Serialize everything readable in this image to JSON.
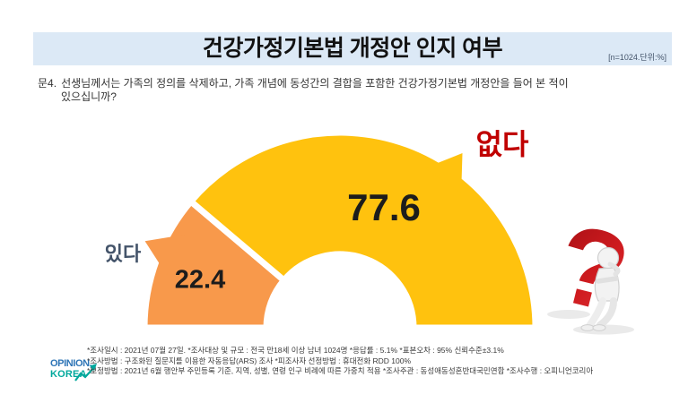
{
  "header": {
    "title": "건강가정기본법 개정안 인지 여부",
    "note": "[n=1024.단위:%]"
  },
  "question": {
    "prefix": "문4.",
    "line1": "선생님께서는 가족의 정의를 삭제하고, 가족 개념에 동성간의 결합을 포함한 건강가정기본법 개정안을 들어 본 적이",
    "line2": "있으십니까?"
  },
  "chart_data": {
    "type": "pie",
    "variant": "half-donut",
    "title": "건강가정기본법 개정안 인지 여부",
    "unit": "%",
    "n": 1024,
    "categories": [
      "있다",
      "없다"
    ],
    "values": [
      22.4,
      77.6
    ],
    "colors": [
      "#F8994B",
      "#FFC20E"
    ],
    "category_label_colors": [
      "#44546A",
      "#C00000"
    ],
    "value_label_color": "#1c1c1c",
    "legend_position": "callout-labels"
  },
  "illustration": {
    "question_mark": "?",
    "question_mark_color": "#C00000"
  },
  "footer": {
    "lines": [
      "*조사일시 : 2021년 07월 27일.  *조사대상 및 규모 : 전국 만18세 이상 남녀 1024명 *응답률 : 5.1%   *표본오차 : 95% 신뢰수준±3.1%",
      "*조사방법 : 구조화된 질문지를 이용한 자동응답(ARS) 조사 *피조사자 선정방법 : 휴대전화 RDD 100%",
      "*보정방법 : 2021년 6월 행안부 주민등록 기준, 지역, 성별, 연령 인구 비례에 따른 가중치 적용  *조사주관 : 동성애동성혼반대국민연합  *조사수행 : 오피니언코리아"
    ],
    "logo": {
      "line1": "OPINION,",
      "line2": "KOREA"
    }
  }
}
